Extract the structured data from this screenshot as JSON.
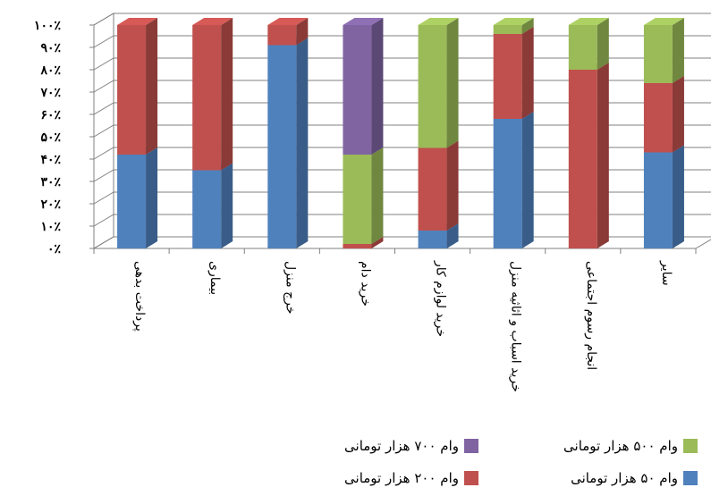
{
  "chart_data": {
    "type": "bar",
    "stacked": true,
    "percent": true,
    "categories": [
      "پرداخت بدهی",
      "بیماری",
      "خرج منزل",
      "خرید دام",
      "خرید لوازم کار",
      "خرید اسباب و اثاثیه منزل",
      "انجام رسوم اجتماعی",
      "سایر"
    ],
    "y_ticks": [
      "۰٪",
      "۱۰٪",
      "۲۰٪",
      "۳۰٪",
      "۴۰٪",
      "۵۰٪",
      "۶۰٪",
      "۷۰٪",
      "۸۰٪",
      "۹۰٪",
      "۱۰۰٪"
    ],
    "ylim": [
      0,
      100
    ],
    "grid": true,
    "legend_position": "bottom",
    "series": [
      {
        "name": "وام ۵۰ هزار تومانی",
        "color": "#4F81BD",
        "values": [
          42,
          35,
          91,
          0,
          8,
          58,
          0,
          43
        ]
      },
      {
        "name": "وام ۲۰۰ هزار تومانی",
        "color": "#C0504D",
        "values": [
          58,
          65,
          9,
          2,
          37,
          38,
          80,
          31
        ]
      },
      {
        "name": "وام ۵۰۰ هزار تومانی",
        "color": "#9BBB59",
        "values": [
          0,
          0,
          0,
          40,
          55,
          4,
          20,
          26
        ]
      },
      {
        "name": "وام ۷۰۰ هزار تومانی",
        "color": "#8064A2",
        "values": [
          0,
          0,
          0,
          58,
          0,
          0,
          0,
          0
        ]
      }
    ]
  }
}
